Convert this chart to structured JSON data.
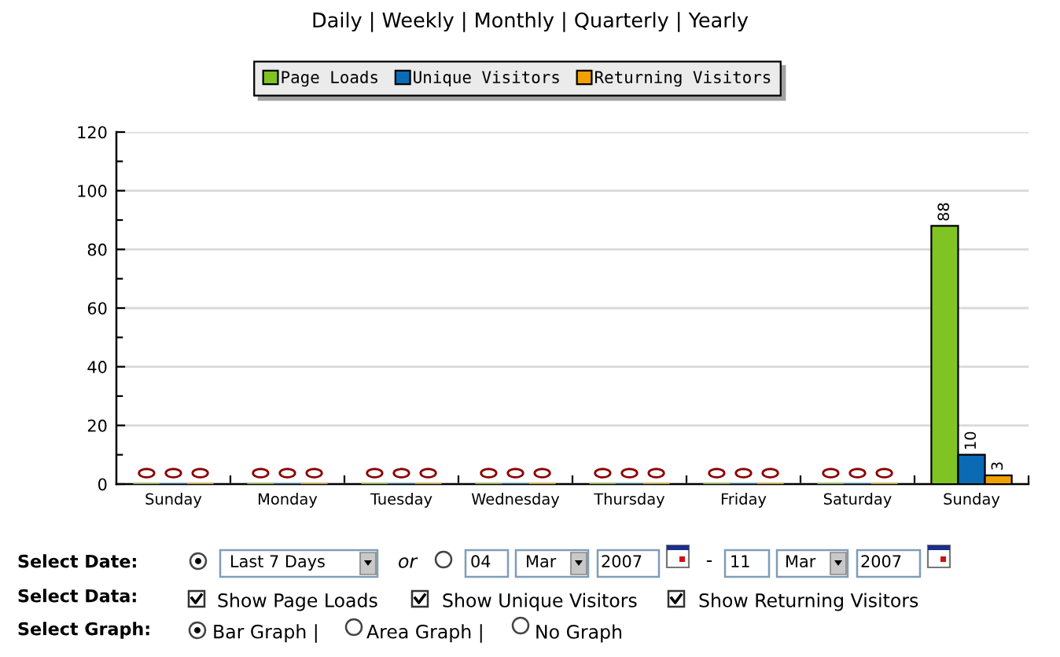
{
  "chart_data": {
    "type": "bar",
    "categories": [
      "Sunday",
      "Monday",
      "Tuesday",
      "Wednesday",
      "Thursday",
      "Friday",
      "Saturday",
      "Sunday"
    ],
    "series": [
      {
        "name": "Page Loads",
        "color": "#80c423",
        "values": [
          0,
          0,
          0,
          0,
          0,
          0,
          0,
          88
        ],
        "value_labels": [
          null,
          null,
          null,
          null,
          null,
          null,
          null,
          "88"
        ]
      },
      {
        "name": "Unique Visitors",
        "color": "#0a6ab4",
        "values": [
          0,
          0,
          0,
          0,
          0,
          0,
          0,
          10
        ],
        "value_labels": [
          null,
          null,
          null,
          null,
          null,
          null,
          null,
          "10"
        ]
      },
      {
        "name": "Returning Visitors",
        "color": "#f0a000",
        "values": [
          0,
          0,
          0,
          0,
          0,
          0,
          0,
          3
        ],
        "value_labels": [
          null,
          null,
          null,
          null,
          null,
          null,
          null,
          "3"
        ]
      }
    ],
    "ylim": [
      0,
      120
    ],
    "yticks": [
      0,
      20,
      40,
      60,
      80,
      100,
      120
    ],
    "grid": "y",
    "legend": "top",
    "marker": "circle",
    "annotations": [
      "Daily | Weekly | Monthly | Quarterly | Yearly",
      "Select Date:",
      "Last 7 Days",
      "or",
      "04",
      "Mar",
      "2007",
      "-",
      "11",
      "Mar",
      "2007",
      "Select Data:",
      "Show Page Loads",
      "Show Unique Visitors",
      "Show Returning Visitors",
      "Select Graph:",
      "Bar Graph |",
      "Area Graph |",
      "No Graph"
    ]
  }
}
